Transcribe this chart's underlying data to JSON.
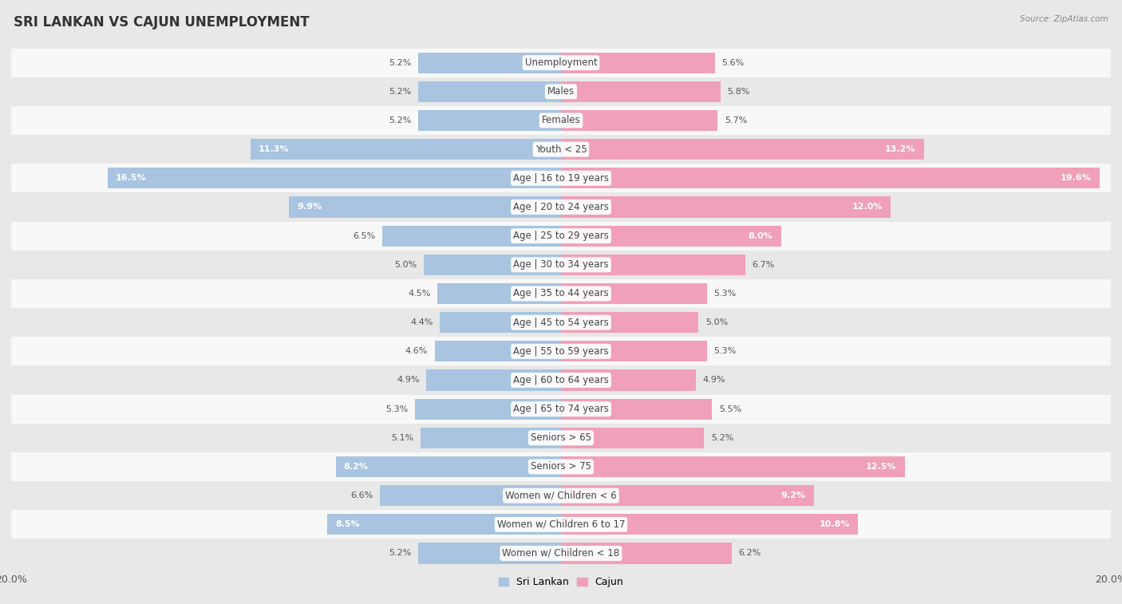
{
  "title": "SRI LANKAN VS CAJUN UNEMPLOYMENT",
  "source": "Source: ZipAtlas.com",
  "categories": [
    "Unemployment",
    "Males",
    "Females",
    "Youth < 25",
    "Age | 16 to 19 years",
    "Age | 20 to 24 years",
    "Age | 25 to 29 years",
    "Age | 30 to 34 years",
    "Age | 35 to 44 years",
    "Age | 45 to 54 years",
    "Age | 55 to 59 years",
    "Age | 60 to 64 years",
    "Age | 65 to 74 years",
    "Seniors > 65",
    "Seniors > 75",
    "Women w/ Children < 6",
    "Women w/ Children 6 to 17",
    "Women w/ Children < 18"
  ],
  "sri_lankan": [
    5.2,
    5.2,
    5.2,
    11.3,
    16.5,
    9.9,
    6.5,
    5.0,
    4.5,
    4.4,
    4.6,
    4.9,
    5.3,
    5.1,
    8.2,
    6.6,
    8.5,
    5.2
  ],
  "cajun": [
    5.6,
    5.8,
    5.7,
    13.2,
    19.6,
    12.0,
    8.0,
    6.7,
    5.3,
    5.0,
    5.3,
    4.9,
    5.5,
    5.2,
    12.5,
    9.2,
    10.8,
    6.2
  ],
  "sri_lankan_color": "#a8c4e0",
  "cajun_color": "#f0a0b8",
  "axis_max": 20.0,
  "bg_color": "#e8e8e8",
  "row_bg_white": "#f8f8f8",
  "row_bg_gray": "#e8e8e8",
  "legend_sri_lankan": "Sri Lankan",
  "legend_cajun": "Cajun",
  "title_fontsize": 12,
  "label_fontsize": 8.5,
  "value_fontsize": 8,
  "inside_threshold": 7.0
}
